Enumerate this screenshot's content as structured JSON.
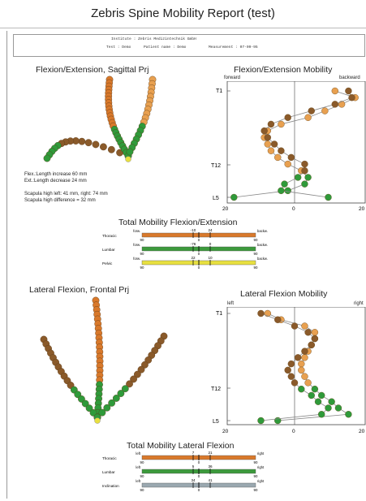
{
  "title": "Zebris Spine Mobility Report (test)",
  "header": {
    "institute": "Institute : Zebris Medizintechnik GmbH",
    "test": "Test : Demo",
    "patient": "Patient name : Demo",
    "measurement": "Measurement : 07-09-95"
  },
  "sagittal": {
    "title": "Flexion/Extension, Sagittal Prj",
    "notes": [
      "Flex.:Length increase 60 mm",
      "Ext.:Length decrease 24 mm",
      "Scapula high left: 41 mm, right: 74 mm",
      "Scapula high difference = 32 mm"
    ]
  },
  "flex_mobility": {
    "title": "Flexion/Extension Mobility",
    "left_label": "forward",
    "right_label": "backward",
    "y_labels": [
      "T1",
      "T12",
      "L5"
    ],
    "x_ticks": [
      "20",
      "0",
      "20"
    ]
  },
  "total_flex": {
    "title": "Total Mobility Flexion/Extension",
    "rows": [
      {
        "name": "Thoracic",
        "left": "forw.",
        "right": "backw.",
        "top": [
          "-10",
          "24"
        ],
        "bottom": [
          "90",
          "0",
          "90"
        ],
        "color": "#d9792b"
      },
      {
        "name": "Lumbar",
        "left": "forw.",
        "right": "backw.",
        "top": [
          "-76",
          "0"
        ],
        "bottom": [
          "90",
          "0",
          "90"
        ],
        "color": "#3c9a3c"
      },
      {
        "name": "Pelvic",
        "left": "forw.",
        "right": "backw.",
        "top": [
          "22",
          "10"
        ],
        "bottom": [
          "90",
          "0",
          "90"
        ],
        "color": "#e8e040"
      }
    ]
  },
  "frontal": {
    "title": "Lateral Flexion, Frontal Prj"
  },
  "lateral_mobility": {
    "title": "Lateral Flexion Mobility",
    "left_label": "left",
    "right_label": "right",
    "y_labels": [
      "T1",
      "T12",
      "L5"
    ],
    "x_ticks": [
      "20",
      "0",
      "20"
    ]
  },
  "total_lateral": {
    "title": "Total Mobility Lateral Flexion",
    "rows": [
      {
        "name": "Thoracic",
        "left": "left",
        "right": "right",
        "top": [
          "7",
          "21"
        ],
        "bottom": [
          "90",
          "0",
          "90"
        ],
        "color": "#d9792b"
      },
      {
        "name": "Lumbar",
        "left": "left",
        "right": "right",
        "top": [
          "5",
          "36"
        ],
        "bottom": [
          "90",
          "0",
          "90"
        ],
        "color": "#3c9a3c"
      },
      {
        "name": "Inclination",
        "left": "left",
        "right": "right",
        "top": [
          "34",
          "41"
        ],
        "bottom": [
          "90",
          "0",
          "90"
        ],
        "color": "#9aa8b0"
      }
    ]
  },
  "colors": {
    "orange": "#d9792b",
    "brown": "#8a5a2a",
    "green": "#2f9a3a",
    "light_orange": "#e8a050",
    "line": "#888888"
  }
}
